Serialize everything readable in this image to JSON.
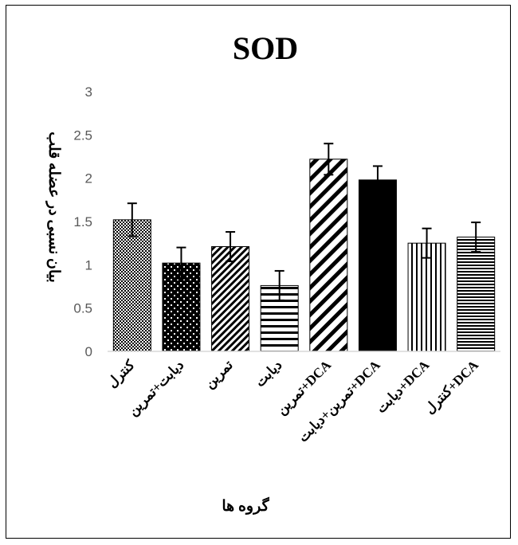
{
  "chart_data": {
    "type": "bar",
    "title": "SOD",
    "xlabel": "گروه ها",
    "ylabel": "بیان نسبی در عضله قلب",
    "ylim": [
      0,
      3
    ],
    "yticks": [
      "0",
      "0.5",
      "1",
      "1.5",
      "2",
      "2.5",
      "3"
    ],
    "grid": false,
    "categories": [
      "کنترل",
      "دیابت+تمرین",
      "تمرین",
      "دیابت",
      "تمرین+DCA",
      "تمرین+دیابت+DCA",
      "دیابت+DCA",
      "کنترل+DCA"
    ],
    "values": [
      1.52,
      1.02,
      1.21,
      0.76,
      2.22,
      1.98,
      1.25,
      1.32
    ],
    "errors": [
      0.19,
      0.18,
      0.17,
      0.17,
      0.18,
      0.16,
      0.17,
      0.17
    ],
    "patterns": [
      "checker",
      "dots",
      "diag-right",
      "hlines-wide",
      "diag-wide",
      "solid",
      "vlines",
      "hlines"
    ],
    "colors": {
      "bar": "#000000",
      "bar_bg": "#ffffff",
      "axis": "#d9d9d9",
      "tick_text": "#595959"
    }
  }
}
